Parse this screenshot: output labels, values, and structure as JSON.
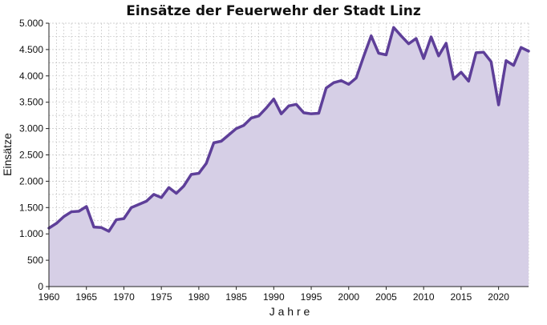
{
  "chart_data": {
    "type": "area",
    "title": "Einsätze der Feuerwehr der Stadt Linz",
    "xlabel": "J a h r e",
    "ylabel": "Einsätze",
    "xlim": [
      1960,
      2024
    ],
    "ylim": [
      0,
      5000
    ],
    "x_ticks": [
      1960,
      1965,
      1970,
      1975,
      1980,
      1985,
      1990,
      1995,
      2000,
      2005,
      2010,
      2015,
      2020
    ],
    "y_ticks": [
      {
        "value": 0,
        "label": "0"
      },
      {
        "value": 500,
        "label": "500"
      },
      {
        "value": 1000,
        "label": "1.000"
      },
      {
        "value": 1500,
        "label": "1.500"
      },
      {
        "value": 2000,
        "label": "2.000"
      },
      {
        "value": 2500,
        "label": "2.500"
      },
      {
        "value": 3000,
        "label": "3.000"
      },
      {
        "value": 3500,
        "label": "3.500"
      },
      {
        "value": 4000,
        "label": "4.000"
      },
      {
        "value": 4500,
        "label": "4.500"
      },
      {
        "value": 5000,
        "label": "5.000"
      }
    ],
    "grid": true,
    "colors": {
      "line": "#5e3f99",
      "fill": "#d6cfe6",
      "grid": "#c4c4c4"
    },
    "x": [
      1960,
      1961,
      1962,
      1963,
      1964,
      1965,
      1966,
      1967,
      1968,
      1969,
      1970,
      1971,
      1972,
      1973,
      1974,
      1975,
      1976,
      1977,
      1978,
      1979,
      1980,
      1981,
      1982,
      1983,
      1984,
      1985,
      1986,
      1987,
      1988,
      1989,
      1990,
      1991,
      1992,
      1993,
      1994,
      1995,
      1996,
      1997,
      1998,
      1999,
      2000,
      2001,
      2002,
      2003,
      2004,
      2005,
      2006,
      2007,
      2008,
      2009,
      2010,
      2011,
      2012,
      2013,
      2014,
      2015,
      2016,
      2017,
      2018,
      2019,
      2020,
      2021,
      2022,
      2023,
      2024
    ],
    "values": [
      1110,
      1200,
      1330,
      1420,
      1430,
      1520,
      1130,
      1120,
      1050,
      1270,
      1290,
      1500,
      1560,
      1620,
      1750,
      1690,
      1880,
      1770,
      1910,
      2130,
      2150,
      2340,
      2730,
      2760,
      2880,
      3000,
      3060,
      3200,
      3240,
      3390,
      3560,
      3280,
      3430,
      3460,
      3300,
      3280,
      3290,
      3770,
      3870,
      3910,
      3840,
      3960,
      4370,
      4760,
      4430,
      4400,
      4920,
      4760,
      4610,
      4710,
      4330,
      4740,
      4380,
      4620,
      3940,
      4070,
      3900,
      4440,
      4450,
      4270,
      3450,
      4290,
      4200,
      4540,
      4470
    ]
  }
}
